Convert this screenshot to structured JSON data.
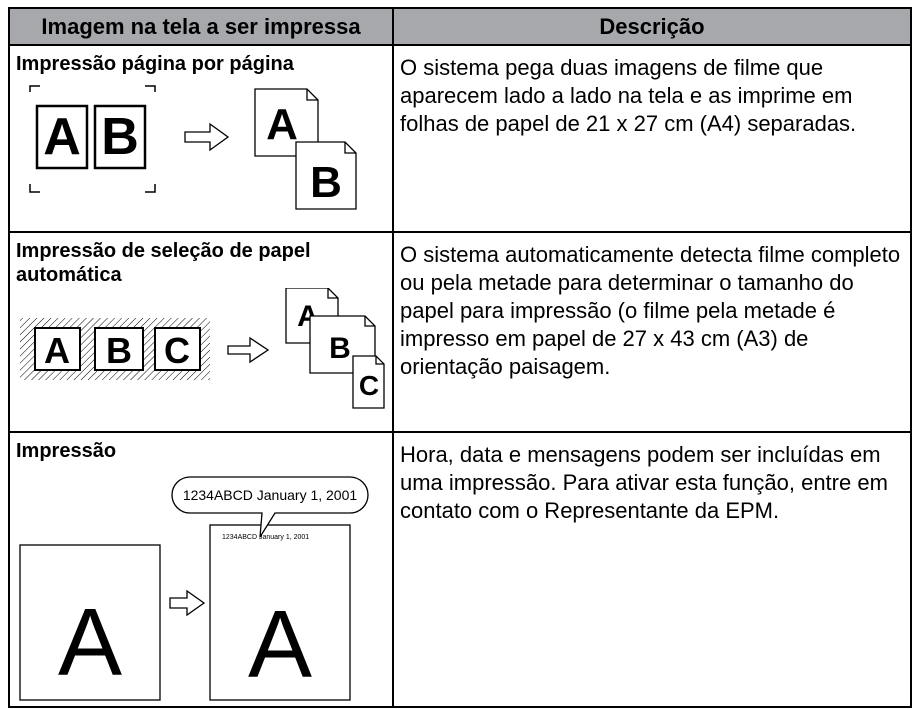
{
  "table": {
    "headers": [
      "Imagem na tela a ser impressa",
      "Descrição"
    ],
    "rows": [
      {
        "title": "Impressão página por página",
        "description": "O sistema pega duas imagens de filme que aparecem lado a lado na tela e as imprime em folhas de papel de 21 x 27 cm (A4) separadas.",
        "figure_labels": [
          "A",
          "B"
        ]
      },
      {
        "title": "Impressão de seleção de papel automática",
        "description": "O sistema automaticamente detecta filme completo ou pela metade para determinar o tamanho do papel para impressão (o filme pela metade é impresso em papel de 27 x 43 cm (A3) de orientação paisagem.",
        "figure_labels": [
          "A",
          "B",
          "C"
        ]
      },
      {
        "title": "Impressão",
        "description": "Hora, data e mensagens podem ser incluídas em uma impressão. Para ativar esta função, entre em contato com o Representante da EPM.",
        "figure_labels": [
          "A"
        ],
        "stamp": "1234ABCD January 1, 2001"
      }
    ]
  }
}
